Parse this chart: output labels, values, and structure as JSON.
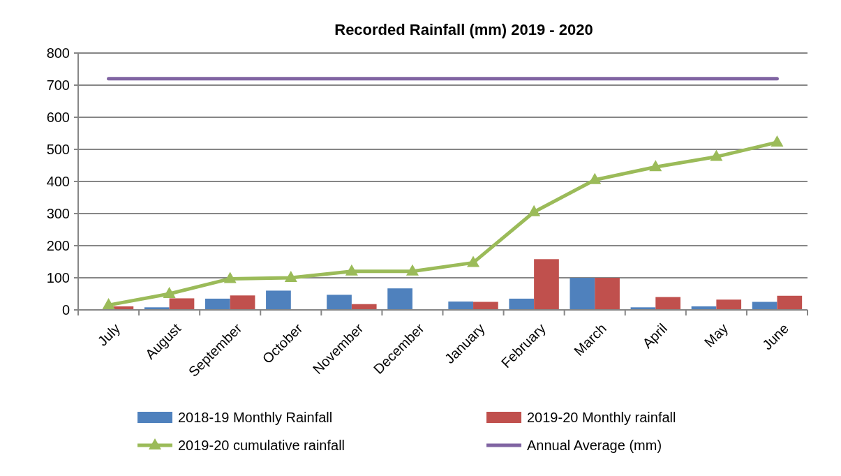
{
  "chart_data": {
    "type": "bar",
    "title": "Recorded Rainfall (mm) 2019 - 2020",
    "categories": [
      "July",
      "August",
      "September",
      "October",
      "November",
      "December",
      "January",
      "February",
      "March",
      "April",
      "May",
      "June"
    ],
    "series": [
      {
        "name": "2018-19 Monthly Rainfall",
        "color": "#4f81bd",
        "values": [
          0,
          8,
          35,
          60,
          47,
          67,
          26,
          35,
          100,
          8,
          11,
          25
        ]
      },
      {
        "name": "2019-20 Monthly rainfall",
        "color": "#c0504d",
        "values": [
          11,
          36,
          45,
          2,
          18,
          0,
          25,
          158,
          100,
          40,
          32,
          44
        ]
      },
      {
        "name": "2019-20 cumulative rainfall",
        "type": "line",
        "marker": "triangle",
        "color": "#9bbb59",
        "values": [
          15,
          50,
          97,
          100,
          120,
          120,
          147,
          305,
          405,
          445,
          477,
          522
        ]
      },
      {
        "name": "Annual Average (mm)",
        "type": "line",
        "marker": "none",
        "color": "#8064a2",
        "values": [
          720,
          720,
          720,
          720,
          720,
          720,
          720,
          720,
          720,
          720,
          720,
          720
        ]
      }
    ],
    "ylim": [
      0,
      800
    ],
    "yticks": [
      0,
      100,
      200,
      300,
      400,
      500,
      600,
      700,
      800
    ],
    "grid": "y",
    "legend": "bottom"
  }
}
